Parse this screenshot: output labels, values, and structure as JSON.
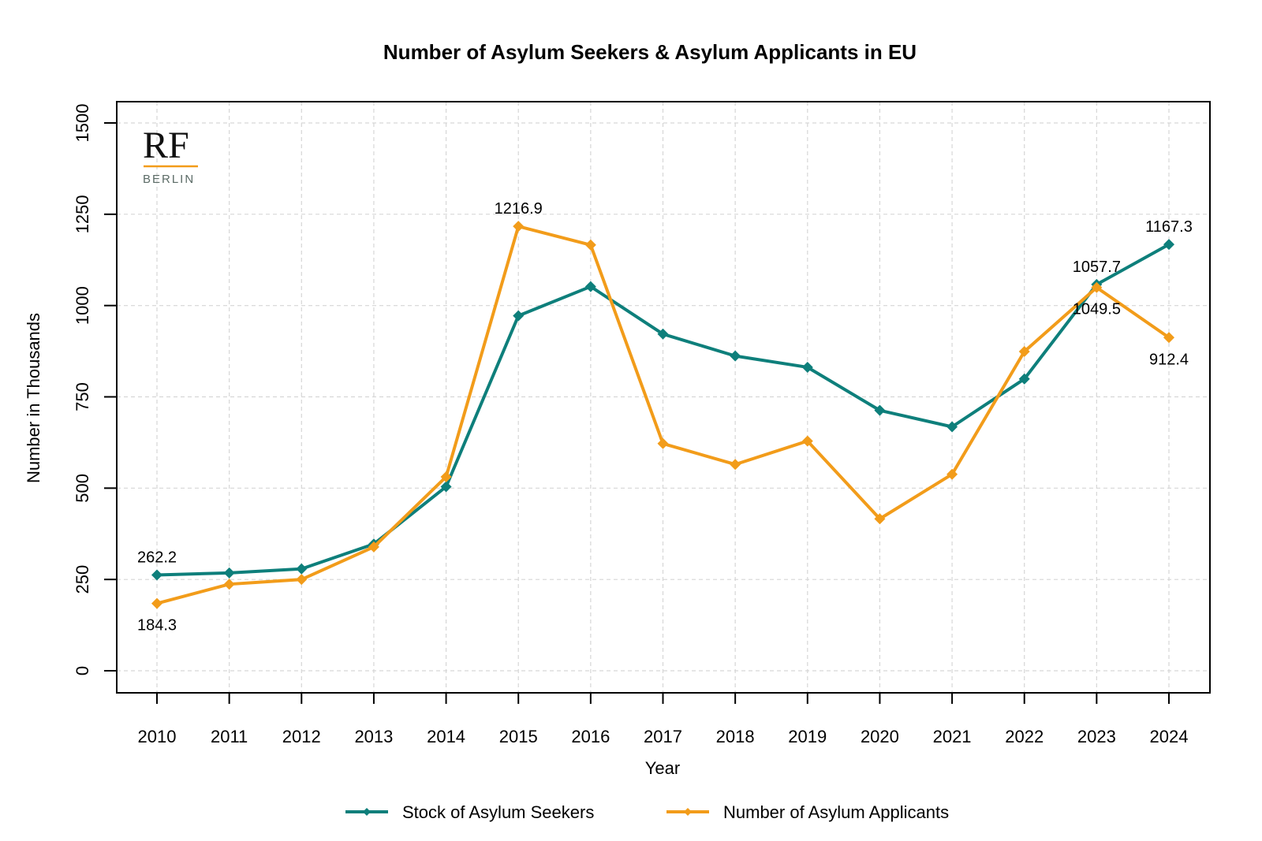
{
  "chart_data": {
    "type": "line",
    "title": "Number of Asylum Seekers & Asylum Applicants in EU",
    "xlabel": "Year",
    "ylabel": "Number in Thousands",
    "x": [
      "2010",
      "2011",
      "2012",
      "2013",
      "2014",
      "2015",
      "2016",
      "2017",
      "2018",
      "2019",
      "2020",
      "2021",
      "2022",
      "2023",
      "2024"
    ],
    "ylim": [
      -50,
      1560
    ],
    "yticks": [
      0,
      250,
      500,
      750,
      1000,
      1250,
      1500
    ],
    "grid": true,
    "legend_position": "bottom",
    "series": [
      {
        "name": "Stock of Asylum Seekers",
        "color": "#0e7f7b",
        "values": [
          262.2,
          268,
          279,
          347,
          504,
          972,
          1052,
          922,
          862,
          831,
          713,
          668,
          799,
          1057.7,
          1167.3
        ],
        "labels": [
          {
            "index": 0,
            "text": "262.2",
            "pos": "above"
          },
          {
            "index": 13,
            "text": "1057.7",
            "pos": "above"
          },
          {
            "index": 14,
            "text": "1167.3",
            "pos": "above"
          }
        ]
      },
      {
        "name": "Number of Asylum Applicants",
        "color": "#f29c1a",
        "values": [
          184.3,
          237,
          250,
          339,
          531,
          1216.9,
          1166,
          622,
          565,
          629,
          416,
          538,
          874,
          1049.5,
          912.4
        ],
        "labels": [
          {
            "index": 0,
            "text": "184.3",
            "pos": "below"
          },
          {
            "index": 5,
            "text": "1216.9",
            "pos": "above"
          },
          {
            "index": 13,
            "text": "1049.5",
            "pos": "below"
          },
          {
            "index": 14,
            "text": "912.4",
            "pos": "below"
          }
        ]
      }
    ]
  },
  "logo": {
    "mark": "RF",
    "subtitle": "BERLIN",
    "accent_color": "#f29c1a"
  }
}
